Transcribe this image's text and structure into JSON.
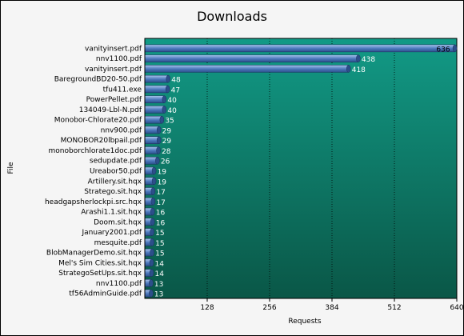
{
  "chart_data": {
    "type": "bar",
    "orientation": "horizontal",
    "title": "Downloads",
    "xlabel": "Requests",
    "ylabel": "File",
    "xlim": [
      0,
      640
    ],
    "xticks": [
      "128",
      "256",
      "384",
      "512",
      "640"
    ],
    "grid": true,
    "categories": [
      "vanityinsert.pdf",
      "nnv1100.pdf",
      "vanityinsert.pdf",
      "BaregroundBD20-50.pdf",
      "tfu411.exe",
      "PowerPellet.pdf",
      "134049-Lbl-N.pdf",
      "Monobor-Chlorate20.pdf",
      "nnv900.pdf",
      "MONOBOR20lbpail.pdf",
      "monoborchlorate1doc.pdf",
      "sedupdate.pdf",
      "Ureabor50.pdf",
      "Artillery.sit.hqx",
      "Stratego.sit.hqx",
      "headgapsherlockpi.src.hqx",
      "Arashi1.1.sit.hqx",
      "Doom.sit.hqx",
      "January2001.pdf",
      "mesquite.pdf",
      "BlobManagerDemo.sit.hqx",
      "Mel's Sim Cities.sit.hqx",
      "StrategoSetUps.sit.hqx",
      "nnv1100.pdf",
      "tf56AdminGuide.pdf"
    ],
    "values": [
      636,
      438,
      418,
      48,
      47,
      40,
      40,
      35,
      29,
      29,
      28,
      26,
      19,
      19,
      17,
      17,
      16,
      16,
      15,
      15,
      15,
      14,
      14,
      13,
      13
    ],
    "colors": {
      "background_top": "#129a86",
      "background_bottom": "#0a5747",
      "bar": "#4a76ba",
      "bar_light": "#a8c4ec",
      "label": "#ffffff"
    }
  }
}
